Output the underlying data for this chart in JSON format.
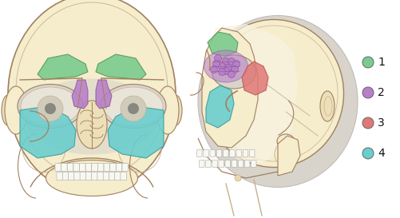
{
  "figsize": [
    5.01,
    2.73
  ],
  "dpi": 100,
  "background_color": "#ffffff",
  "legend_items": [
    {
      "label": "1",
      "color": "#7bcb8e"
    },
    {
      "label": "2",
      "color": "#b87ec8"
    },
    {
      "label": "3",
      "color": "#e07878"
    },
    {
      "label": "4",
      "color": "#68cece"
    }
  ],
  "skull_fill": "#f5edcc",
  "skull_fill2": "#ede0b8",
  "skull_stroke": "#a08060",
  "skull_stroke2": "#c8b090",
  "gray_area": "#d8d4cc",
  "soft_tissue": "#f0e8d0",
  "sinus_frontal": "#7bcb8e",
  "sinus_ethmoid": "#b87ec8",
  "sinus_maxillary": "#68cece",
  "sinus_sphenoid": "#e07878",
  "eye_fill": "#d8d4c4",
  "white": "#f8f8f8"
}
